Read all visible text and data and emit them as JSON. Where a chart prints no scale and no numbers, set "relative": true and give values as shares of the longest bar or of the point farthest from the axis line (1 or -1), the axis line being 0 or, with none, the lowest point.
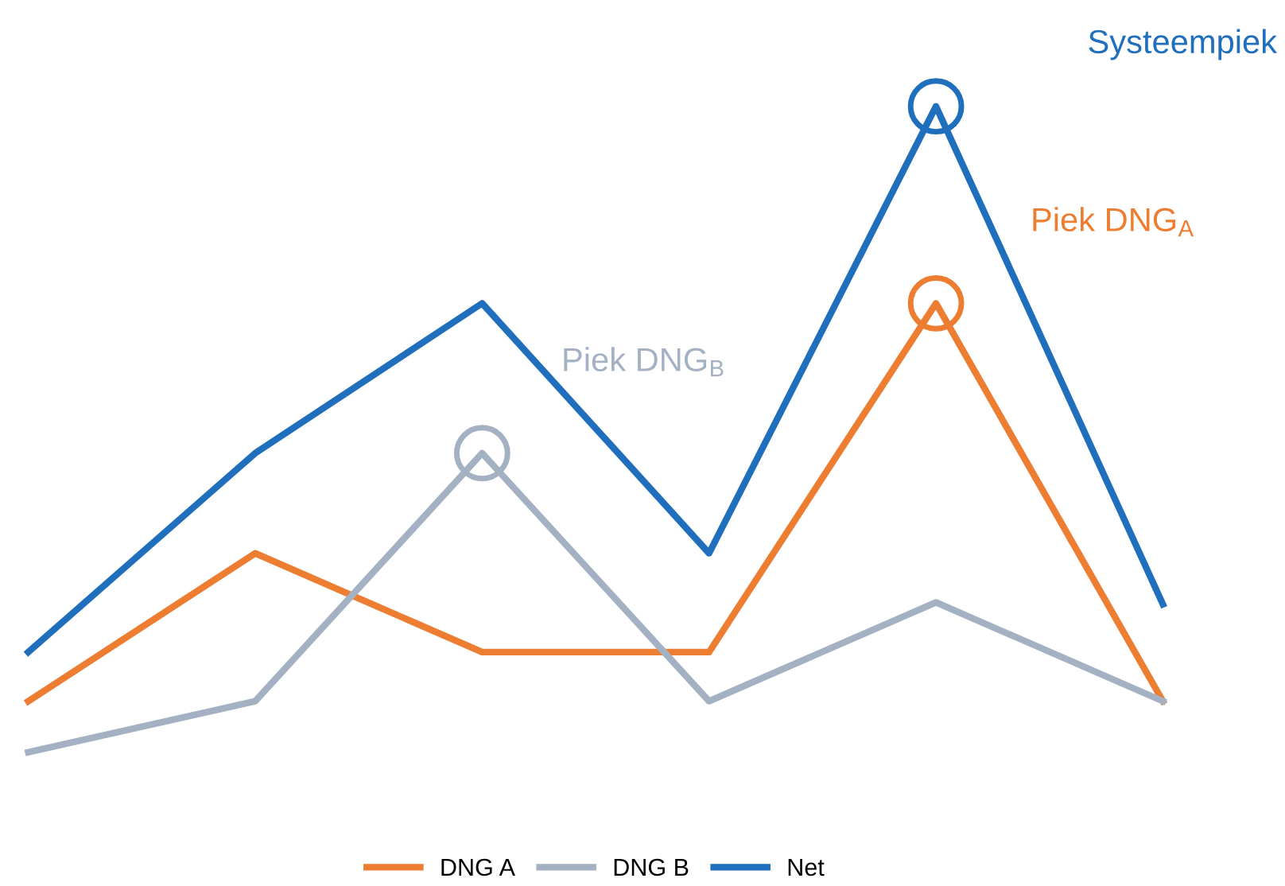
{
  "chart_data": {
    "type": "line",
    "relative": true,
    "categories": [
      null,
      null,
      null,
      null,
      null,
      null
    ],
    "series": [
      {
        "name": "DNG A",
        "color": "#ed7d31",
        "values": [
          0.079,
          0.308,
          0.155,
          0.155,
          0.695,
          0.079
        ]
      },
      {
        "name": "DNG B",
        "color": "#a3b1c2",
        "values": [
          0,
          0.079,
          0.463,
          0.079,
          0.232,
          0.079
        ]
      },
      {
        "name": "Net",
        "color": "#1f6fbd",
        "values": [
          0.155,
          0.463,
          0.695,
          0.308,
          1.0,
          0.229
        ]
      }
    ],
    "annotations": [
      "Systeempiek",
      "Piek DNG$_{A}$",
      "Piek DNG$_{B}$"
    ],
    "legend": "bottom",
    "grid": false,
    "marker": "none",
    "line_style": "solid"
  }
}
